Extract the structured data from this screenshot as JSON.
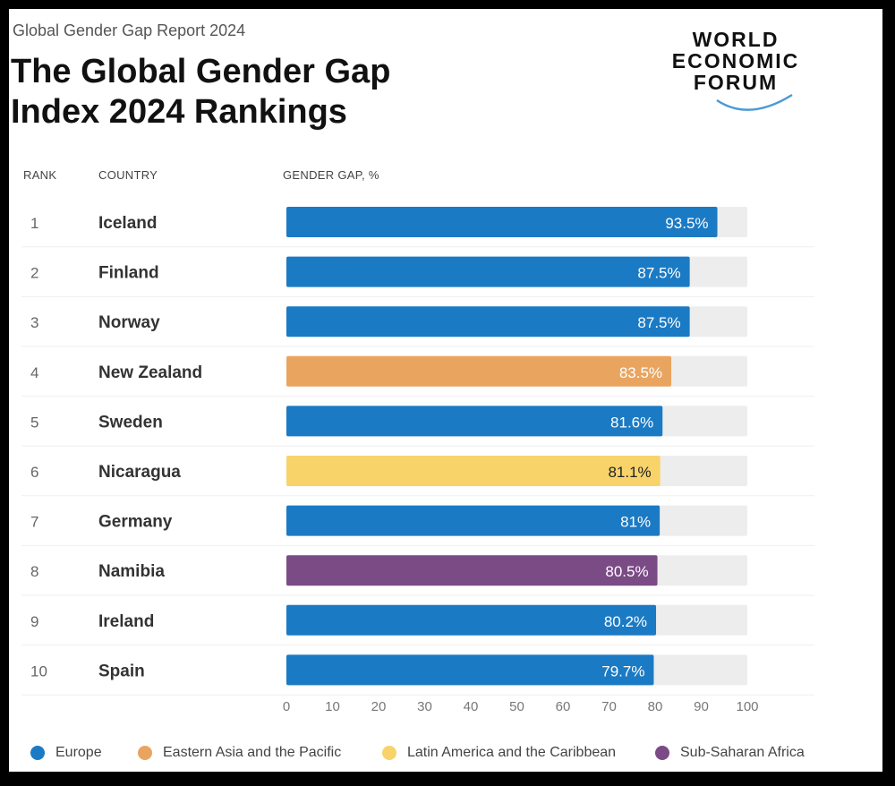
{
  "report_label": "Global Gender Gap Report 2024",
  "title": "The Global Gender Gap Index 2024 Rankings",
  "logo": {
    "lines": [
      "WORLD",
      "ECONOMIC",
      "FORUM"
    ],
    "name": "world-economic-forum-logo"
  },
  "headers": {
    "rank": "RANK",
    "country": "COUNTRY",
    "gap": "GENDER GAP, %"
  },
  "colors": {
    "Europe": "#1b7ac4",
    "Eastern Asia and the Pacific": "#e9a55f",
    "Latin America and the Caribbean": "#f7d36a",
    "Sub-Saharan Africa": "#7b4b86",
    "track": "#ededed"
  },
  "legend": [
    {
      "label": "Europe",
      "color": "#1b7ac4"
    },
    {
      "label": "Eastern Asia and the Pacific",
      "color": "#e9a55f"
    },
    {
      "label": "Latin America and the Caribbean",
      "color": "#f7d36a"
    },
    {
      "label": "Sub-Saharan Africa",
      "color": "#7b4b86"
    }
  ],
  "chart_data": {
    "type": "bar",
    "orientation": "horizontal",
    "title": "The Global Gender Gap Index 2024 Rankings",
    "xlabel": "GENDER GAP, %",
    "xlim": [
      0,
      100
    ],
    "xticks": [
      0,
      10,
      20,
      30,
      40,
      50,
      60,
      70,
      80,
      90,
      100
    ],
    "rows": [
      {
        "rank": "1",
        "country": "Iceland",
        "value": 93.5,
        "label": "93.5%",
        "region": "Europe"
      },
      {
        "rank": "2",
        "country": "Finland",
        "value": 87.5,
        "label": "87.5%",
        "region": "Europe"
      },
      {
        "rank": "3",
        "country": "Norway",
        "value": 87.5,
        "label": "87.5%",
        "region": "Europe"
      },
      {
        "rank": "4",
        "country": "New Zealand",
        "value": 83.5,
        "label": "83.5%",
        "region": "Eastern Asia and the Pacific"
      },
      {
        "rank": "5",
        "country": "Sweden",
        "value": 81.6,
        "label": "81.6%",
        "region": "Europe"
      },
      {
        "rank": "6",
        "country": "Nicaragua",
        "value": 81.1,
        "label": "81.1%",
        "region": "Latin America and the Caribbean"
      },
      {
        "rank": "7",
        "country": "Germany",
        "value": 81.0,
        "label": "81%",
        "region": "Europe"
      },
      {
        "rank": "8",
        "country": "Namibia",
        "value": 80.5,
        "label": "80.5%",
        "region": "Sub-Saharan Africa"
      },
      {
        "rank": "9",
        "country": "Ireland",
        "value": 80.2,
        "label": "80.2%",
        "region": "Europe"
      },
      {
        "rank": "10",
        "country": "Spain",
        "value": 79.7,
        "label": "79.7%",
        "region": "Europe"
      }
    ]
  }
}
